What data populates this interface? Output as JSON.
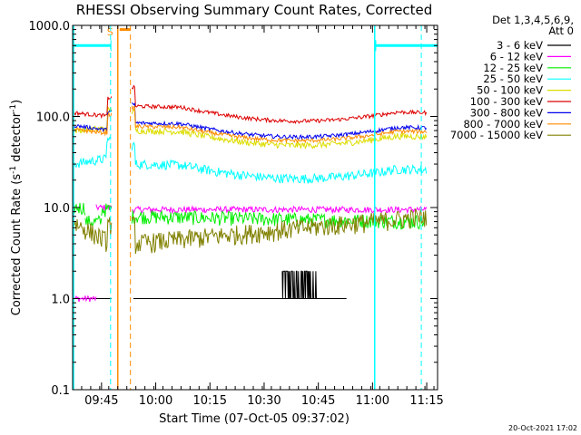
{
  "chart_data": {
    "type": "line",
    "title": "RHESSI Observing Summary Count Rates, Corrected",
    "xlabel": "Start Time (07-Oct-05 09:37:02)",
    "ylabel_main": "Corrected Count Rate (s",
    "ylabel_sup1": "-1",
    "ylabel_mid": " detector",
    "ylabel_sup2": "-1",
    "ylabel_end": ")",
    "ylog": true,
    "ylim": [
      0.1,
      1000
    ],
    "xlim_minutes": [
      0,
      101
    ],
    "xticks": [
      {
        "m": 8,
        "label": "09:45"
      },
      {
        "m": 23,
        "label": "10:00"
      },
      {
        "m": 38,
        "label": "10:15"
      },
      {
        "m": 53,
        "label": "10:30"
      },
      {
        "m": 68,
        "label": "10:45"
      },
      {
        "m": 83,
        "label": "11:00"
      },
      {
        "m": 98,
        "label": "11:15"
      }
    ],
    "yticks": [
      {
        "v": 0.1,
        "label": "0.1"
      },
      {
        "v": 1,
        "label": "1.0"
      },
      {
        "v": 10,
        "label": "10.0"
      },
      {
        "v": 100,
        "label": "100.0"
      },
      {
        "v": 1000,
        "label": "1000.0"
      }
    ],
    "legend_header": [
      "Det 1,3,4,5,6,9,",
      "Att 0"
    ],
    "legend_placement": "right",
    "series": [
      {
        "name": "3 - 6 keV",
        "color": "#000000"
      },
      {
        "name": "6 - 12 keV",
        "color": "#ff00ff"
      },
      {
        "name": "12 - 25 keV",
        "color": "#00ee00"
      },
      {
        "name": "25 - 50 keV",
        "color": "#00ffff"
      },
      {
        "name": "50 - 100 keV",
        "color": "#dddd00"
      },
      {
        "name": "100 - 300 keV",
        "color": "#dd0000"
      },
      {
        "name": "300 - 800 keV",
        "color": "#0000ee"
      },
      {
        "name": "800 - 7000 keV",
        "color": "#ff8c00"
      },
      {
        "name": "7000 - 15000 keV",
        "color": "#808000"
      }
    ],
    "saa_label": "S",
    "saa_level": 600,
    "saa_intervals": [
      [
        0,
        10.5
      ],
      [
        84,
        101
      ]
    ],
    "saa_marker_minutes": [
      10.6,
      83.9
    ],
    "flag_intervals_orange": [
      [
        12.5,
        16
      ]
    ],
    "flag_orange_lines": [
      12.5,
      16
    ],
    "cyan_solid_lines": [
      0,
      83.6
    ],
    "cyan_dash_lines": [
      10.5,
      96.5
    ],
    "footer_date": "20-Oct-2021 17:02"
  }
}
